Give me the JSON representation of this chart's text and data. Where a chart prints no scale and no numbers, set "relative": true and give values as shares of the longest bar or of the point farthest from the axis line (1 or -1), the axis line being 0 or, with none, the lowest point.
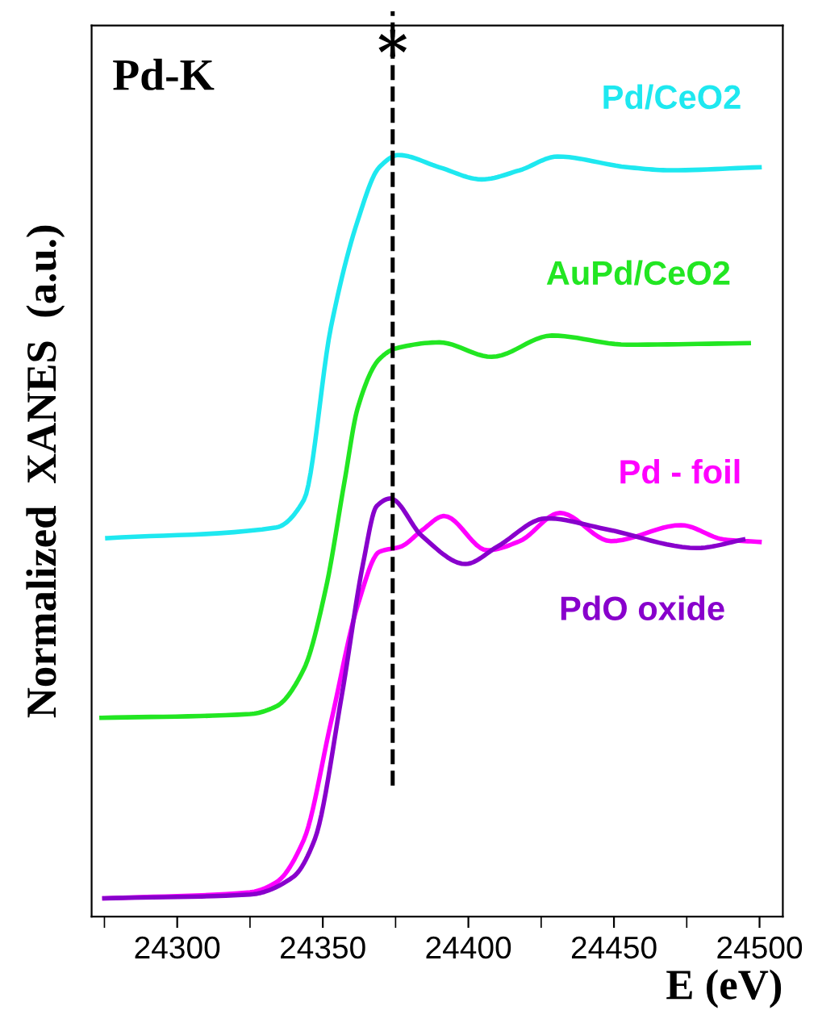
{
  "chart_data": {
    "type": "line",
    "title": "Pd-K",
    "xlabel": "E (eV)",
    "ylabel": "Normalized  XANES  (a.u.)",
    "relative": true,
    "legend": false,
    "grid": false,
    "line_style": "solid",
    "marker": "none",
    "xlim": [
      24270.6,
      24508
    ],
    "xticks": [
      {
        "value": 24275,
        "label": null
      },
      24300,
      {
        "value": 24325,
        "label": null
      },
      24350,
      {
        "value": 24375,
        "label": null
      },
      24400,
      {
        "value": 24425,
        "label": null
      },
      24450,
      {
        "value": 24475,
        "label": null
      },
      24500
    ],
    "ref_lines": [
      {
        "axis": "x",
        "value": 24374,
        "label": "*",
        "color": "#000000",
        "line_style": "dashed"
      }
    ],
    "series": [
      {
        "name": "Pd/CeO2",
        "color": "#1ee8f0",
        "x": [
          24276,
          24334,
          24343.5,
          24352.8,
          24362,
          24369.4,
          24376,
          24390,
          24404.6,
          24417.6,
          24430.6,
          24454.6,
          24469.4,
          24500
        ],
        "values": [
          0.497,
          0.511,
          0.547,
          0.774,
          0.914,
          0.984,
          1.0,
          0.984,
          0.968,
          0.98,
          0.998,
          0.984,
          0.98,
          0.984
        ]
      },
      {
        "name": "AuPd/CeO2",
        "color": "#22e622",
        "x": [
          24274,
          24325,
          24334,
          24343.5,
          24351,
          24357.4,
          24362,
          24369.4,
          24375,
          24390,
          24408,
          24428.7,
          24454.6,
          24496.3
        ],
        "values": [
          0.261,
          0.266,
          0.276,
          0.325,
          0.43,
          0.57,
          0.668,
          0.732,
          0.746,
          0.754,
          0.735,
          0.763,
          0.751,
          0.753
        ]
      },
      {
        "name": "Pd - foil",
        "color": "#ff00ff",
        "x": [
          24275,
          24325,
          24334,
          24343.5,
          24352.8,
          24362,
          24369.4,
          24376.9,
          24384,
          24391.7,
          24406.5,
          24417.6,
          24431.5,
          24449,
          24473,
          24488,
          24500
        ],
        "values": [
          0.024,
          0.032,
          0.045,
          0.101,
          0.255,
          0.409,
          0.479,
          0.486,
          0.507,
          0.526,
          0.481,
          0.493,
          0.53,
          0.493,
          0.514,
          0.495,
          0.492
        ]
      },
      {
        "name": "PdO oxide",
        "color": "#8800cc",
        "x": [
          24275,
          24325,
          24339.8,
          24347.2,
          24356.5,
          24363.9,
          24368.5,
          24373.2,
          24384,
          24399,
          24410,
          24426.8,
          24447,
          24478.7,
          24494.4
        ],
        "values": [
          0.024,
          0.029,
          0.052,
          0.101,
          0.29,
          0.465,
          0.539,
          0.549,
          0.5,
          0.463,
          0.486,
          0.523,
          0.509,
          0.484,
          0.495
        ]
      }
    ]
  }
}
